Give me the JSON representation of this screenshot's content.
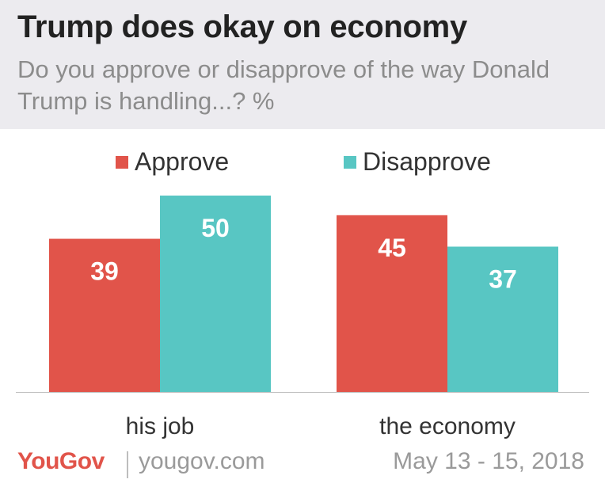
{
  "header": {
    "title": "Trump does okay on economy",
    "subtitle": "Do you approve or disapprove of the way Donald Trump is handling...? %"
  },
  "legend": [
    {
      "label": "Approve",
      "color": "#e1544a"
    },
    {
      "label": "Disapprove",
      "color": "#58c6c3"
    }
  ],
  "chart_data": {
    "type": "bar",
    "title": "Trump does okay on economy",
    "subtitle": "Do you approve or disapprove of the way Donald Trump is handling...? %",
    "categories": [
      "his job",
      "the economy"
    ],
    "series": [
      {
        "name": "Approve",
        "values": [
          39,
          45
        ],
        "color": "#e1544a"
      },
      {
        "name": "Disapprove",
        "values": [
          50,
          37
        ],
        "color": "#58c6c3"
      }
    ],
    "ylim": [
      0,
      50
    ],
    "grid": false,
    "legend_position": "top"
  },
  "footer": {
    "brand": "YouGov",
    "url": "yougov.com",
    "date": "May 13 - 15, 2018"
  }
}
